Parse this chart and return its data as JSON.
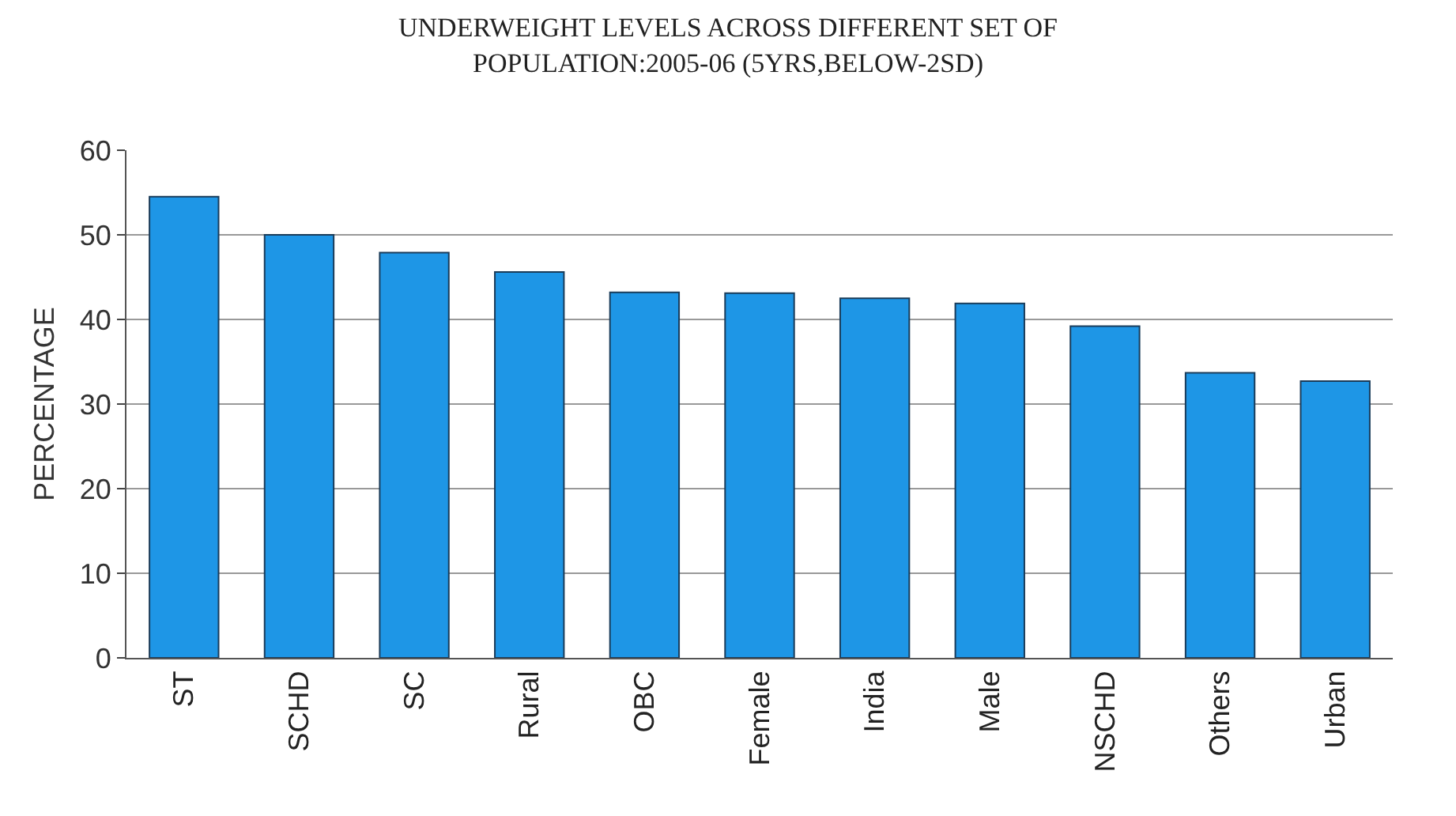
{
  "chart_data": {
    "type": "bar",
    "title": "UNDERWEIGHT LEVELS ACROSS DIFFERENT SET OF\nPOPULATION:2005-06 (5YRS,BELOW-2SD)",
    "ylabel": "PERCENTAGE",
    "categories": [
      "ST",
      "SCHD",
      "SC",
      "Rural",
      "OBC",
      "Female",
      "India",
      "Male",
      "NSCHD",
      "Others",
      "Urban"
    ],
    "values": [
      54.5,
      50,
      47.9,
      45.6,
      43.2,
      43.1,
      42.5,
      41.9,
      39.2,
      33.7,
      32.7
    ],
    "color": "#1e96e6",
    "ylim": [
      0,
      60
    ],
    "yticks": [
      0,
      10,
      20,
      30,
      40,
      50,
      60
    ],
    "grid": "y",
    "legend": false
  }
}
